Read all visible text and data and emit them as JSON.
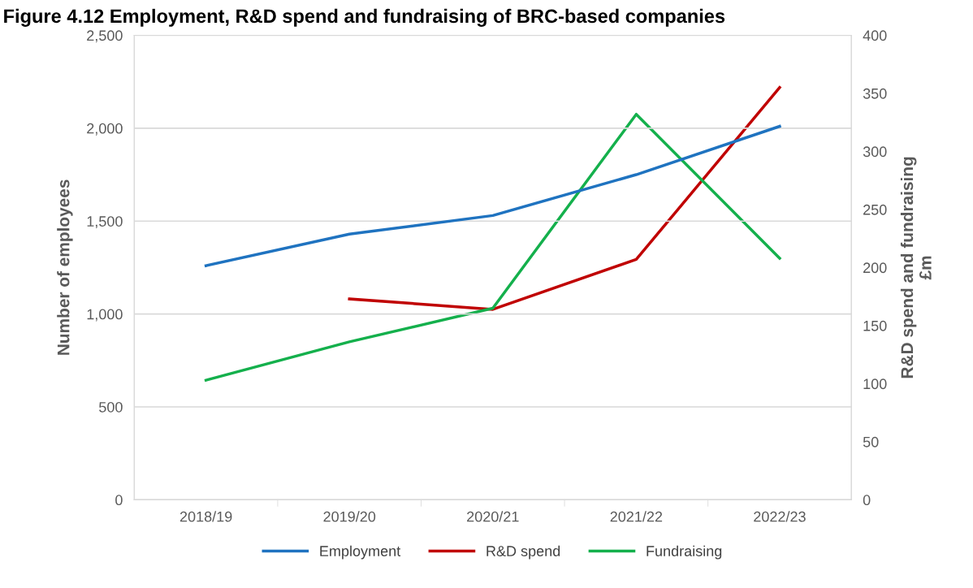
{
  "chart_data": {
    "type": "line",
    "title": "Figure 4.12 Employment, R&D spend and fundraising of BRC-based companies",
    "categories": [
      "2018/19",
      "2019/20",
      "2020/21",
      "2021/22",
      "2022/23"
    ],
    "series": [
      {
        "name": "Employment",
        "color": "#1f73c0",
        "values": [
          1260,
          1430,
          1530,
          1750,
          2010
        ]
      },
      {
        "name": "R&D spend",
        "color": "#c00000",
        "axis": "y2",
        "values": [
          null,
          173,
          164,
          207,
          355
        ]
      },
      {
        "name": "Fundraising",
        "color": "#14b04c",
        "axis": "y2",
        "values": [
          103,
          136,
          165,
          332,
          208
        ]
      }
    ],
    "ylabel": "Number of employees",
    "y2label": "R&D spend and fundraising\n£m",
    "ylim": [
      0,
      2500
    ],
    "yticks": [
      {
        "value": 0,
        "label": "0"
      },
      {
        "value": 500,
        "label": "500"
      },
      {
        "value": 1000,
        "label": "1,000"
      },
      {
        "value": 1500,
        "label": "1,500"
      },
      {
        "value": 2000,
        "label": "2,000"
      },
      {
        "value": 2500,
        "label": "2,500"
      }
    ],
    "y2lim": [
      0,
      400
    ],
    "y2ticks": [
      0,
      50,
      100,
      150,
      200,
      250,
      300,
      350,
      400
    ],
    "grid": "y",
    "legend": "bottom",
    "marker": "none",
    "line_style": "solid"
  }
}
